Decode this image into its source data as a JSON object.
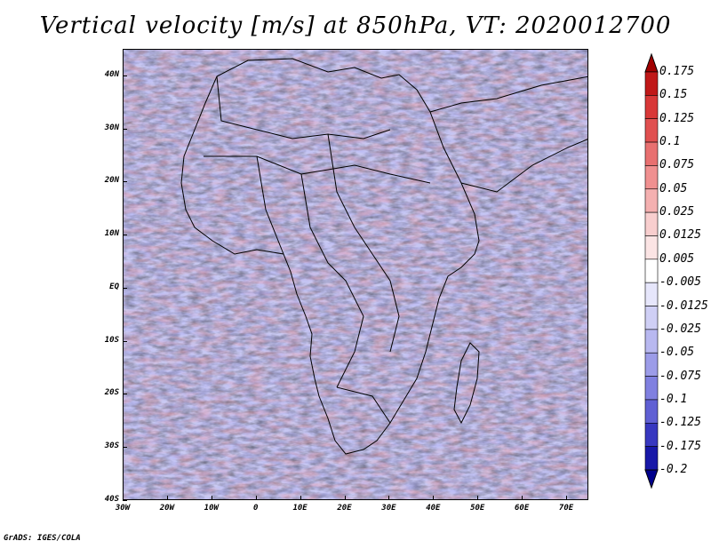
{
  "title": "Vertical velocity [m/s] at 850hPa, VT: 2020012700",
  "credit": "GrADS: IGES/COLA",
  "lat_labels": [
    "40N",
    "30N",
    "20N",
    "10N",
    "EQ",
    "10S",
    "20S",
    "30S",
    "40S"
  ],
  "lat_values": [
    40,
    30,
    20,
    10,
    0,
    -10,
    -20,
    -30,
    -40
  ],
  "lon_labels": [
    "30W",
    "20W",
    "10W",
    "0",
    "10E",
    "20E",
    "30E",
    "40E",
    "50E",
    "60E",
    "70E"
  ],
  "lon_values": [
    -30,
    -20,
    -10,
    0,
    10,
    20,
    30,
    40,
    50,
    60,
    70
  ],
  "extent": {
    "lon": [
      -30,
      75
    ],
    "lat": [
      -40,
      45
    ]
  },
  "colorbar": {
    "labels": [
      "0.175",
      "0.15",
      "0.125",
      "0.1",
      "0.075",
      "0.05",
      "0.025",
      "0.0125",
      "0.005",
      "-0.005",
      "-0.0125",
      "-0.025",
      "-0.05",
      "-0.075",
      "-0.1",
      "-0.125",
      "-0.175",
      "-0.2"
    ],
    "colors": [
      "#a00000",
      "#c01818",
      "#d83838",
      "#e05050",
      "#e87070",
      "#f09090",
      "#f4b0b0",
      "#f8cece",
      "#fbe4e4",
      "#ffffff",
      "#e6e6fb",
      "#cfcff5",
      "#b8b8f0",
      "#9c9ce8",
      "#8080e0",
      "#6060d4",
      "#3838c0",
      "#1818a8",
      "#00008c"
    ]
  }
}
